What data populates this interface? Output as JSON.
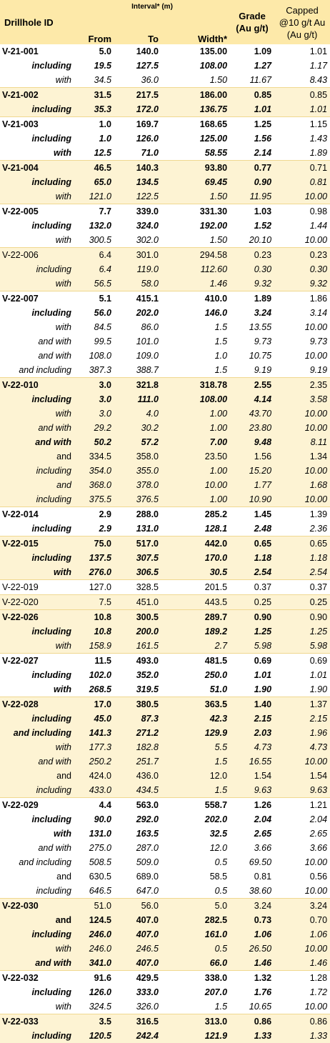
{
  "header": {
    "drillhole_id": "Drillhole ID",
    "interval": "Interval* (m)",
    "from": "From",
    "to": "To",
    "width": "Width*",
    "grade_line1": "Grade",
    "grade_line2": "(Au g/t)",
    "capped_line1": "Capped",
    "capped_line2": "@10 g/t Au",
    "capped_line3": "(Au g/t)"
  },
  "rows": [
    {
      "id": "V-21-001",
      "label": "",
      "from": "5.0",
      "to": "140.0",
      "width": "135.00",
      "grade": "1.09",
      "capped": "1.01",
      "style": "b",
      "group": 1,
      "start": true
    },
    {
      "id": "",
      "label": "including",
      "from": "19.5",
      "to": "127.5",
      "width": "108.00",
      "grade": "1.27",
      "capped": "1.17",
      "style": "bi",
      "group": 1
    },
    {
      "id": "",
      "label": "with",
      "from": "34.5",
      "to": "36.0",
      "width": "1.50",
      "grade": "11.67",
      "capped": "8.43",
      "style": "i",
      "group": 1
    },
    {
      "id": "V-21-002",
      "label": "",
      "from": "31.5",
      "to": "217.5",
      "width": "186.00",
      "grade": "0.85",
      "capped": "0.85",
      "style": "b",
      "group": 2,
      "start": true
    },
    {
      "id": "",
      "label": "including",
      "from": "35.3",
      "to": "172.0",
      "width": "136.75",
      "grade": "1.01",
      "capped": "1.01",
      "style": "bi",
      "group": 2
    },
    {
      "id": "V-21-003",
      "label": "",
      "from": "1.0",
      "to": "169.7",
      "width": "168.65",
      "grade": "1.25",
      "capped": "1.15",
      "style": "b",
      "group": 1,
      "start": true
    },
    {
      "id": "",
      "label": "including",
      "from": "1.0",
      "to": "126.0",
      "width": "125.00",
      "grade": "1.56",
      "capped": "1.43",
      "style": "bi",
      "group": 1
    },
    {
      "id": "",
      "label": "with",
      "from": "12.5",
      "to": "71.0",
      "width": "58.55",
      "grade": "2.14",
      "capped": "1.89",
      "style": "bi",
      "group": 1
    },
    {
      "id": "V-21-004",
      "label": "",
      "from": "46.5",
      "to": "140.3",
      "width": "93.80",
      "grade": "0.77",
      "capped": "0.71",
      "style": "b",
      "group": 2,
      "start": true
    },
    {
      "id": "",
      "label": "including",
      "from": "65.0",
      "to": "134.5",
      "width": "69.45",
      "grade": "0.90",
      "capped": "0.81",
      "style": "bi",
      "group": 2
    },
    {
      "id": "",
      "label": "with",
      "from": "121.0",
      "to": "122.5",
      "width": "1.50",
      "grade": "11.95",
      "capped": "10.00",
      "style": "i",
      "group": 2
    },
    {
      "id": "V-22-005",
      "label": "",
      "from": "7.7",
      "to": "339.0",
      "width": "331.30",
      "grade": "1.03",
      "capped": "0.98",
      "style": "b",
      "group": 1,
      "start": true
    },
    {
      "id": "",
      "label": "including",
      "from": "132.0",
      "to": "324.0",
      "width": "192.00",
      "grade": "1.52",
      "capped": "1.44",
      "style": "bi",
      "group": 1
    },
    {
      "id": "",
      "label": "with",
      "from": "300.5",
      "to": "302.0",
      "width": "1.50",
      "grade": "20.10",
      "capped": "10.00",
      "style": "i",
      "group": 1
    },
    {
      "id": "V-22-006",
      "label": "",
      "from": "6.4",
      "to": "301.0",
      "width": "294.58",
      "grade": "0.23",
      "capped": "0.23",
      "style": "n",
      "group": 2,
      "start": true
    },
    {
      "id": "",
      "label": "including",
      "from": "6.4",
      "to": "119.0",
      "width": "112.60",
      "grade": "0.30",
      "capped": "0.30",
      "style": "i",
      "group": 2
    },
    {
      "id": "",
      "label": "with",
      "from": "56.5",
      "to": "58.0",
      "width": "1.46",
      "grade": "9.32",
      "capped": "9.32",
      "style": "i",
      "group": 2
    },
    {
      "id": "V-22-007",
      "label": "",
      "from": "5.1",
      "to": "415.1",
      "width": "410.0",
      "grade": "1.89",
      "capped": "1.86",
      "style": "b",
      "group": 1,
      "start": true
    },
    {
      "id": "",
      "label": "including",
      "from": "56.0",
      "to": "202.0",
      "width": "146.0",
      "grade": "3.24",
      "capped": "3.14",
      "style": "bi",
      "group": 1
    },
    {
      "id": "",
      "label": "with",
      "from": "84.5",
      "to": "86.0",
      "width": "1.5",
      "grade": "13.55",
      "capped": "10.00",
      "style": "i",
      "group": 1
    },
    {
      "id": "",
      "label": "and with",
      "from": "99.5",
      "to": "101.0",
      "width": "1.5",
      "grade": "9.73",
      "capped": "9.73",
      "style": "i",
      "group": 1
    },
    {
      "id": "",
      "label": "and with",
      "from": "108.0",
      "to": "109.0",
      "width": "1.0",
      "grade": "10.75",
      "capped": "10.00",
      "style": "i",
      "group": 1
    },
    {
      "id": "",
      "label": "and including",
      "from": "387.3",
      "to": "388.7",
      "width": "1.5",
      "grade": "9.19",
      "capped": "9.19",
      "style": "i",
      "group": 1
    },
    {
      "id": "V-22-010",
      "label": "",
      "from": "3.0",
      "to": "321.8",
      "width": "318.78",
      "grade": "2.55",
      "capped": "2.35",
      "style": "b",
      "group": 2,
      "start": true
    },
    {
      "id": "",
      "label": "including",
      "from": "3.0",
      "to": "111.0",
      "width": "108.00",
      "grade": "4.14",
      "capped": "3.58",
      "style": "bi",
      "group": 2
    },
    {
      "id": "",
      "label": "with",
      "from": "3.0",
      "to": "4.0",
      "width": "1.00",
      "grade": "43.70",
      "capped": "10.00",
      "style": "i",
      "group": 2
    },
    {
      "id": "",
      "label": "and with",
      "from": "29.2",
      "to": "30.2",
      "width": "1.00",
      "grade": "23.80",
      "capped": "10.00",
      "style": "i",
      "group": 2
    },
    {
      "id": "",
      "label": "and with",
      "from": "50.2",
      "to": "57.2",
      "width": "7.00",
      "grade": "9.48",
      "capped": "8.11",
      "style": "bi",
      "group": 2
    },
    {
      "id": "",
      "label": "and",
      "from": "334.5",
      "to": "358.0",
      "width": "23.50",
      "grade": "1.56",
      "capped": "1.34",
      "style": "n",
      "group": 2
    },
    {
      "id": "",
      "label": "including",
      "from": "354.0",
      "to": "355.0",
      "width": "1.00",
      "grade": "15.20",
      "capped": "10.00",
      "style": "i",
      "group": 2
    },
    {
      "id": "",
      "label": "and",
      "from": "368.0",
      "to": "378.0",
      "width": "10.00",
      "grade": "1.77",
      "capped": "1.68",
      "style": "i",
      "group": 2
    },
    {
      "id": "",
      "label": "including",
      "from": "375.5",
      "to": "376.5",
      "width": "1.00",
      "grade": "10.90",
      "capped": "10.00",
      "style": "i",
      "group": 2
    },
    {
      "id": "V-22-014",
      "label": "",
      "from": "2.9",
      "to": "288.0",
      "width": "285.2",
      "grade": "1.45",
      "capped": "1.39",
      "style": "b",
      "group": 1,
      "start": true
    },
    {
      "id": "",
      "label": "including",
      "from": "2.9",
      "to": "131.0",
      "width": "128.1",
      "grade": "2.48",
      "capped": "2.36",
      "style": "bi",
      "group": 1
    },
    {
      "id": "V-22-015",
      "label": "",
      "from": "75.0",
      "to": "517.0",
      "width": "442.0",
      "grade": "0.65",
      "capped": "0.65",
      "style": "b",
      "group": 2,
      "start": true
    },
    {
      "id": "",
      "label": "including",
      "from": "137.5",
      "to": "307.5",
      "width": "170.0",
      "grade": "1.18",
      "capped": "1.18",
      "style": "bi",
      "group": 2
    },
    {
      "id": "",
      "label": "with",
      "from": "276.0",
      "to": "306.5",
      "width": "30.5",
      "grade": "2.54",
      "capped": "2.54",
      "style": "bi",
      "group": 2
    },
    {
      "id": "V-22-019",
      "label": "",
      "from": "127.0",
      "to": "328.5",
      "width": "201.5",
      "grade": "0.37",
      "capped": "0.37",
      "style": "n",
      "group": 1,
      "start": true
    },
    {
      "id": "V-22-020",
      "label": "",
      "from": "7.5",
      "to": "451.0",
      "width": "443.5",
      "grade": "0.25",
      "capped": "0.25",
      "style": "n",
      "group": 2,
      "start": true
    },
    {
      "id": "V-22-026",
      "label": "",
      "from": "10.8",
      "to": "300.5",
      "width": "289.7",
      "grade": "0.90",
      "capped": "0.90",
      "style": "b",
      "group": 2,
      "start": true
    },
    {
      "id": "",
      "label": "including",
      "from": "10.8",
      "to": "200.0",
      "width": "189.2",
      "grade": "1.25",
      "capped": "1.25",
      "style": "bi",
      "group": 2
    },
    {
      "id": "",
      "label": "with",
      "from": "158.9",
      "to": "161.5",
      "width": "2.7",
      "grade": "5.98",
      "capped": "5.98",
      "style": "i",
      "group": 2
    },
    {
      "id": "V-22-027",
      "label": "",
      "from": "11.5",
      "to": "493.0",
      "width": "481.5",
      "grade": "0.69",
      "capped": "0.69",
      "style": "b",
      "group": 1,
      "start": true
    },
    {
      "id": "",
      "label": "including",
      "from": "102.0",
      "to": "352.0",
      "width": "250.0",
      "grade": "1.01",
      "capped": "1.01",
      "style": "bi",
      "group": 1
    },
    {
      "id": "",
      "label": "with",
      "from": "268.5",
      "to": "319.5",
      "width": "51.0",
      "grade": "1.90",
      "capped": "1.90",
      "style": "bi",
      "group": 1
    },
    {
      "id": "V-22-028",
      "label": "",
      "from": "17.0",
      "to": "380.5",
      "width": "363.5",
      "grade": "1.40",
      "capped": "1.37",
      "style": "b",
      "group": 2,
      "start": true
    },
    {
      "id": "",
      "label": "including",
      "from": "45.0",
      "to": "87.3",
      "width": "42.3",
      "grade": "2.15",
      "capped": "2.15",
      "style": "bi",
      "group": 2
    },
    {
      "id": "",
      "label": "and including",
      "from": "141.3",
      "to": "271.2",
      "width": "129.9",
      "grade": "2.03",
      "capped": "1.96",
      "style": "bi",
      "group": 2
    },
    {
      "id": "",
      "label": "with",
      "from": "177.3",
      "to": "182.8",
      "width": "5.5",
      "grade": "4.73",
      "capped": "4.73",
      "style": "i",
      "group": 2
    },
    {
      "id": "",
      "label": "and with",
      "from": "250.2",
      "to": "251.7",
      "width": "1.5",
      "grade": "16.55",
      "capped": "10.00",
      "style": "i",
      "group": 2
    },
    {
      "id": "",
      "label": "and",
      "from": "424.0",
      "to": "436.0",
      "width": "12.0",
      "grade": "1.54",
      "capped": "1.54",
      "style": "n",
      "group": 2
    },
    {
      "id": "",
      "label": "including",
      "from": "433.0",
      "to": "434.5",
      "width": "1.5",
      "grade": "9.63",
      "capped": "9.63",
      "style": "i",
      "group": 2
    },
    {
      "id": "V-22-029",
      "label": "",
      "from": "4.4",
      "to": "563.0",
      "width": "558.7",
      "grade": "1.26",
      "capped": "1.21",
      "style": "b",
      "group": 1,
      "start": true
    },
    {
      "id": "",
      "label": "including",
      "from": "90.0",
      "to": "292.0",
      "width": "202.0",
      "grade": "2.04",
      "capped": "2.04",
      "style": "bi",
      "group": 1
    },
    {
      "id": "",
      "label": "with",
      "from": "131.0",
      "to": "163.5",
      "width": "32.5",
      "grade": "2.65",
      "capped": "2.65",
      "style": "bi",
      "group": 1
    },
    {
      "id": "",
      "label": "and with",
      "from": "275.0",
      "to": "287.0",
      "width": "12.0",
      "grade": "3.66",
      "capped": "3.66",
      "style": "i",
      "group": 1
    },
    {
      "id": "",
      "label": "and including",
      "from": "508.5",
      "to": "509.0",
      "width": "0.5",
      "grade": "69.50",
      "capped": "10.00",
      "style": "i",
      "group": 1
    },
    {
      "id": "",
      "label": "and",
      "from": "630.5",
      "to": "689.0",
      "width": "58.5",
      "grade": "0.81",
      "capped": "0.56",
      "style": "n",
      "group": 1
    },
    {
      "id": "",
      "label": "including",
      "from": "646.5",
      "to": "647.0",
      "width": "0.5",
      "grade": "38.60",
      "capped": "10.00",
      "style": "i",
      "group": 1
    },
    {
      "id": "V-22-030",
      "label": "",
      "from": "51.0",
      "to": "56.0",
      "width": "5.0",
      "grade": "3.24",
      "capped": "3.24",
      "style": "n",
      "group": 2,
      "start": true,
      "idbold": true
    },
    {
      "id": "",
      "label": "and",
      "from": "124.5",
      "to": "407.0",
      "width": "282.5",
      "grade": "0.73",
      "capped": "0.70",
      "style": "b",
      "group": 2
    },
    {
      "id": "",
      "label": "including",
      "from": "246.0",
      "to": "407.0",
      "width": "161.0",
      "grade": "1.06",
      "capped": "1.06",
      "style": "bi",
      "group": 2
    },
    {
      "id": "",
      "label": "with",
      "from": "246.0",
      "to": "246.5",
      "width": "0.5",
      "grade": "26.50",
      "capped": "10.00",
      "style": "i",
      "group": 2
    },
    {
      "id": "",
      "label": "and with",
      "from": "341.0",
      "to": "407.0",
      "width": "66.0",
      "grade": "1.46",
      "capped": "1.46",
      "style": "bi",
      "group": 2
    },
    {
      "id": "V-22-032",
      "label": "",
      "from": "91.6",
      "to": "429.5",
      "width": "338.0",
      "grade": "1.32",
      "capped": "1.28",
      "style": "b",
      "group": 1,
      "start": true
    },
    {
      "id": "",
      "label": "including",
      "from": "126.0",
      "to": "333.0",
      "width": "207.0",
      "grade": "1.76",
      "capped": "1.72",
      "style": "bi",
      "group": 1
    },
    {
      "id": "",
      "label": "with",
      "from": "324.5",
      "to": "326.0",
      "width": "1.5",
      "grade": "10.65",
      "capped": "10.00",
      "style": "i",
      "group": 1
    },
    {
      "id": "V-22-033",
      "label": "",
      "from": "3.5",
      "to": "316.5",
      "width": "313.0",
      "grade": "0.86",
      "capped": "0.86",
      "style": "b",
      "group": 2,
      "start": true
    },
    {
      "id": "",
      "label": "including",
      "from": "120.5",
      "to": "242.4",
      "width": "121.9",
      "grade": "1.33",
      "capped": "1.33",
      "style": "bi",
      "group": 2
    }
  ]
}
